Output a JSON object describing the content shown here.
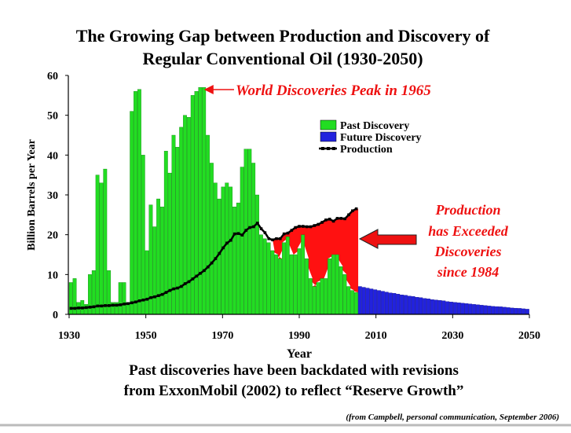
{
  "title": {
    "line1": "The Growing Gap between Production and Discovery of",
    "line2": "Regular Conventional Oil (1930-2050)"
  },
  "subtitle": {
    "line1": "Past discoveries have been backdated with revisions",
    "line2": "from ExxonMobil (2002) to reflect “Reserve Growth”"
  },
  "credit": "(from Campbell, personal communication, September 2006)",
  "annotations": {
    "peak": "World Discoveries Peak in 1965",
    "exceeded": [
      "Production",
      "has Exceeded",
      "Discoveries",
      "since 1984"
    ]
  },
  "colors": {
    "past_discovery": "#22dd22",
    "future_discovery": "#2222dd",
    "production": "#000000",
    "gap": "#ff1111",
    "annotation": "#ee1111",
    "plot_background": "#ffffff"
  },
  "chart_data": {
    "type": "bar",
    "xlabel": "Year",
    "ylabel": "Billion Barrels per Year",
    "xlim": [
      1930,
      2050
    ],
    "ylim": [
      0,
      60
    ],
    "xticks": [
      1930,
      1950,
      1970,
      1990,
      2010,
      2030,
      2050
    ],
    "yticks": [
      0,
      10,
      20,
      30,
      40,
      50,
      60
    ],
    "grid": false,
    "legend": {
      "position": "upper-right",
      "entries": [
        "Past Discovery",
        "Future Discovery",
        "Production"
      ]
    },
    "series": [
      {
        "name": "Past Discovery",
        "type": "bar",
        "x": [
          1930,
          1931,
          1932,
          1933,
          1934,
          1935,
          1936,
          1937,
          1938,
          1939,
          1940,
          1941,
          1942,
          1943,
          1944,
          1945,
          1946,
          1947,
          1948,
          1949,
          1950,
          1951,
          1952,
          1953,
          1954,
          1955,
          1956,
          1957,
          1958,
          1959,
          1960,
          1961,
          1962,
          1963,
          1964,
          1965,
          1966,
          1967,
          1968,
          1969,
          1970,
          1971,
          1972,
          1973,
          1974,
          1975,
          1976,
          1977,
          1978,
          1979,
          1980,
          1981,
          1982,
          1983,
          1984,
          1985,
          1986,
          1987,
          1988,
          1989,
          1990,
          1991,
          1992,
          1993,
          1994,
          1995,
          1996,
          1997,
          1998,
          1999,
          2000,
          2001,
          2002,
          2003,
          2004,
          2005
        ],
        "values": [
          8,
          9,
          3,
          3.5,
          2.5,
          10,
          11,
          35,
          33,
          36.5,
          11,
          3,
          3,
          8,
          8,
          3,
          51,
          56,
          56.5,
          40,
          16,
          27.5,
          22,
          29,
          27,
          41,
          35.5,
          45,
          42,
          47,
          50,
          49.5,
          55,
          56,
          57,
          57,
          45,
          38,
          33,
          29,
          32,
          33,
          32,
          27,
          28,
          37,
          41.5,
          41.5,
          38,
          30,
          20,
          19,
          18,
          16,
          15,
          14,
          18,
          19.5,
          15,
          15,
          16.5,
          20,
          14,
          9,
          7,
          8,
          9,
          9,
          14,
          15,
          15,
          12,
          10,
          7,
          6,
          5.5
        ]
      },
      {
        "name": "Future Discovery",
        "type": "bar",
        "x": [
          2006,
          2007,
          2008,
          2009,
          2010,
          2011,
          2012,
          2013,
          2014,
          2015,
          2016,
          2017,
          2018,
          2019,
          2020,
          2021,
          2022,
          2023,
          2024,
          2025,
          2026,
          2027,
          2028,
          2029,
          2030,
          2031,
          2032,
          2033,
          2034,
          2035,
          2036,
          2037,
          2038,
          2039,
          2040,
          2041,
          2042,
          2043,
          2044,
          2045,
          2046,
          2047,
          2048,
          2049,
          2050
        ],
        "values": [
          7,
          6.8,
          6.6,
          6.4,
          6.2,
          6.0,
          5.8,
          5.6,
          5.4,
          5.3,
          5.1,
          4.9,
          4.8,
          4.6,
          4.5,
          4.3,
          4.2,
          4.0,
          3.9,
          3.7,
          3.6,
          3.5,
          3.4,
          3.2,
          3.1,
          3.0,
          2.9,
          2.8,
          2.7,
          2.6,
          2.5,
          2.4,
          2.3,
          2.2,
          2.1,
          2.0,
          1.95,
          1.9,
          1.8,
          1.7,
          1.6,
          1.55,
          1.5,
          1.4,
          1.3
        ]
      },
      {
        "name": "Production",
        "type": "line",
        "x": [
          1930,
          1931,
          1932,
          1933,
          1934,
          1935,
          1936,
          1937,
          1938,
          1939,
          1940,
          1941,
          1942,
          1943,
          1944,
          1945,
          1946,
          1947,
          1948,
          1949,
          1950,
          1951,
          1952,
          1953,
          1954,
          1955,
          1956,
          1957,
          1958,
          1959,
          1960,
          1961,
          1962,
          1963,
          1964,
          1965,
          1966,
          1967,
          1968,
          1969,
          1970,
          1971,
          1972,
          1973,
          1974,
          1975,
          1976,
          1977,
          1978,
          1979,
          1980,
          1981,
          1982,
          1983,
          1984,
          1985,
          1986,
          1987,
          1988,
          1989,
          1990,
          1991,
          1992,
          1993,
          1994,
          1995,
          1996,
          1997,
          1998,
          1999,
          2000,
          2001,
          2002,
          2003,
          2004,
          2005
        ],
        "values": [
          1.5,
          1.5,
          1.6,
          1.6,
          1.7,
          1.8,
          1.9,
          2.1,
          2.1,
          2.2,
          2.2,
          2.3,
          2.3,
          2.4,
          2.6,
          2.7,
          2.9,
          3.1,
          3.4,
          3.6,
          3.8,
          4.2,
          4.4,
          4.7,
          5.0,
          5.5,
          6.0,
          6.4,
          6.6,
          7.0,
          7.7,
          8.2,
          8.9,
          9.6,
          10.3,
          11.0,
          11.9,
          12.9,
          14.0,
          15.3,
          16.7,
          17.9,
          18.6,
          20.2,
          20.3,
          19.9,
          21.1,
          21.8,
          22.0,
          22.9,
          21.5,
          20.5,
          19.0,
          18.7,
          19.0,
          19.0,
          20.2,
          20.4,
          21.1,
          21.8,
          22.1,
          22.1,
          22.0,
          22.0,
          22.3,
          22.6,
          23.1,
          23.7,
          23.9,
          23.4,
          24.1,
          24.1,
          24.0,
          25.0,
          26.0,
          26.5
        ]
      }
    ]
  }
}
